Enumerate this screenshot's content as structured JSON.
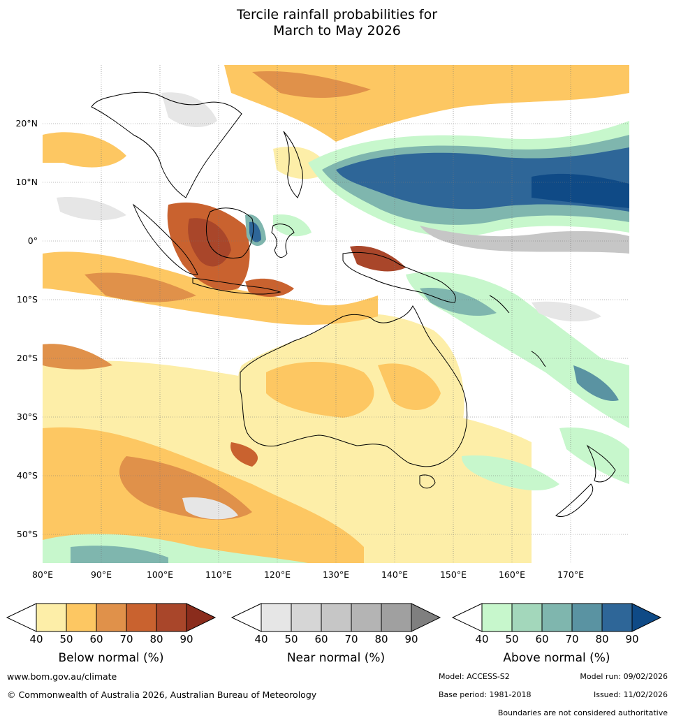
{
  "title_line1": "Tercile rainfall probabilities for",
  "title_line2": "March to May 2026",
  "lat_labels": [
    "20°N",
    "10°N",
    "0°",
    "10°S",
    "20°S",
    "30°S",
    "40°S",
    "50°S"
  ],
  "lon_labels": [
    "80°E",
    "90°E",
    "100°E",
    "110°E",
    "120°E",
    "130°E",
    "140°E",
    "150°E",
    "160°E",
    "170°E"
  ],
  "colorbars": [
    {
      "title": "Below normal (%)",
      "ticks": [
        "40",
        "50",
        "60",
        "70",
        "80",
        "90"
      ],
      "colors": [
        "#fdeea8",
        "#fdc762",
        "#e0914a",
        "#c9622f",
        "#a9462a",
        "#8a2c1c"
      ]
    },
    {
      "title": "Near normal (%)",
      "ticks": [
        "40",
        "50",
        "60",
        "70",
        "80",
        "90"
      ],
      "colors": [
        "#e6e6e6",
        "#d6d6d6",
        "#c6c6c6",
        "#b4b4b4",
        "#a0a0a0",
        "#7f7f7f"
      ]
    },
    {
      "title": "Above normal (%)",
      "ticks": [
        "40",
        "50",
        "60",
        "70",
        "80",
        "90"
      ],
      "colors": [
        "#c7f7cc",
        "#a3d7bb",
        "#7fb6ae",
        "#5a93a2",
        "#2e6698",
        "#0f4a86"
      ]
    }
  ],
  "footer": {
    "website": "www.bom.gov.au/climate",
    "copyright": "© Commonwealth of Australia 2026, Australian Bureau of Meteorology",
    "model": "Model: ACCESS-S2",
    "model_run": "Model run: 09/02/2026",
    "base_period": "Base period: 1981-2018",
    "issued": "Issued: 11/02/2026",
    "disclaimer": "Boundaries are not considered authoritative"
  }
}
